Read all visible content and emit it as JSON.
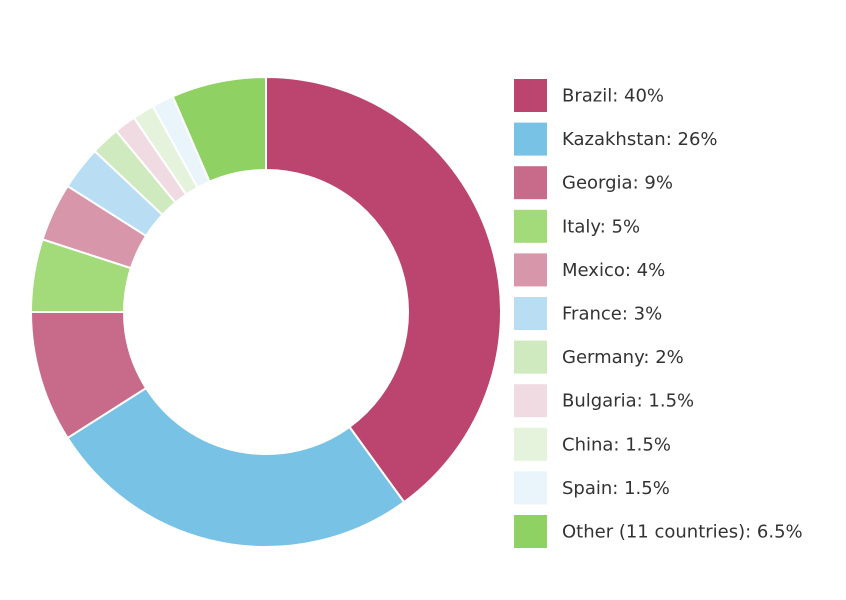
{
  "chart_data": {
    "type": "pie",
    "style": "donut",
    "legend_position": "right",
    "slices": [
      {
        "label": "Brazil: 40%",
        "category": "Brazil",
        "value": 40,
        "color": "#bb456f"
      },
      {
        "label": "Kazakhstan: 26%",
        "category": "Kazakhstan",
        "value": 26,
        "color": "#78c2e6"
      },
      {
        "label": "Georgia: 9%",
        "category": "Georgia",
        "value": 9,
        "color": "#c86b8b"
      },
      {
        "label": "Italy: 5%",
        "category": "Italy",
        "value": 5,
        "color": "#a3db7a"
      },
      {
        "label": "Mexico: 4%",
        "category": "Mexico",
        "value": 4,
        "color": "#d796aa"
      },
      {
        "label": "France: 3%",
        "category": "France",
        "value": 3,
        "color": "#b9ddf3"
      },
      {
        "label": "Germany: 2%",
        "category": "Germany",
        "value": 2,
        "color": "#cfeabf"
      },
      {
        "label": "Bulgaria: 1.5%",
        "category": "Bulgaria",
        "value": 1.5,
        "color": "#f1dbe3"
      },
      {
        "label": "China: 1.5%",
        "category": "China",
        "value": 1.5,
        "color": "#e6f3dc"
      },
      {
        "label": "Spain: 1.5%",
        "category": "Spain",
        "value": 1.5,
        "color": "#e9f4fb"
      },
      {
        "label": "Other (11 countries): 6.5%",
        "category": "Other (11 countries)",
        "value": 6.5,
        "color": "#8fd263"
      }
    ]
  }
}
